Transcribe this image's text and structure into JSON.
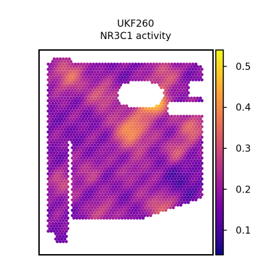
{
  "chart_data": {
    "type": "heatmap",
    "title_line1": "UKF260",
    "title_line2": "NR3C1 activity",
    "xlabel": "",
    "ylabel": "",
    "colormap": "plasma",
    "colorbar": {
      "range": [
        0.04,
        0.54
      ],
      "ticks": [
        0.1,
        0.2,
        0.3,
        0.4,
        0.5
      ],
      "tick_labels": [
        "0.1",
        "0.2",
        "0.3",
        "0.4",
        "0.5"
      ]
    },
    "hotspots": [
      {
        "region": "upper-center tissue near tissue gap",
        "value": 0.54
      },
      {
        "region": "center-left",
        "value": 0.4
      },
      {
        "region": "upper-left",
        "value": 0.33
      },
      {
        "region": "lower-middle",
        "value": 0.32
      },
      {
        "region": "right side",
        "value": 0.34
      }
    ],
    "baseline_value": 0.17,
    "grid": false,
    "legend": "colorbar right"
  },
  "colors": {
    "background": "#ffffff",
    "frame": "#000000"
  }
}
